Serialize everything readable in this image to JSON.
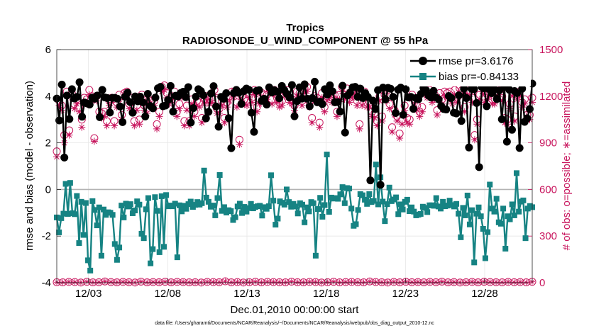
{
  "chart_data": {
    "type": "line",
    "title_line1": "Tropics",
    "title_line2": "RADIOSONDE_U_WIND_COMPONENT @ 55 hPa",
    "xlabel": "Dec.01,2010 00:00:00 start",
    "ylabel_left": "rmse and bias (model - observation)",
    "ylabel_right": "# of obs: o=possible; ∗=assimilated",
    "footnote": "data file: /Users/gharamti/Documents/NCAR/Reanalysis/~/Documents/NCAR/Reanalysis/webpub/obs_diag_output_2010-12.nc",
    "x_range": [
      1,
      31
    ],
    "ylim_left": [
      -4,
      6
    ],
    "ylim_right": [
      0,
      1500
    ],
    "yticks_left": [
      "-4",
      "-2",
      "0",
      "2",
      "4",
      "6"
    ],
    "yticks_right": [
      "0",
      "300",
      "600",
      "900",
      "1200",
      "1500"
    ],
    "x_ticks": [
      {
        "x": 3,
        "label": "12/03"
      },
      {
        "x": 8,
        "label": "12/08"
      },
      {
        "x": 13,
        "label": "12/13"
      },
      {
        "x": 18,
        "label": "12/18"
      },
      {
        "x": 23,
        "label": "12/23"
      },
      {
        "x": 28,
        "label": "12/28"
      }
    ],
    "colors": {
      "rmse": "#000000",
      "bias": "#168383",
      "obs": "#c8155d",
      "zero": "#b3b3b3"
    },
    "legend": {
      "placement": "top-right",
      "rmse": "rmse pr=3.6176",
      "bias": "bias pr=-0.84133"
    },
    "series": [
      {
        "name": "rmse",
        "marker": "circle",
        "values": [
          3.9,
          2.96,
          4.5,
          1.37,
          4.03,
          3.02,
          4.3,
          3.9,
          3.97,
          4.6,
          3.12,
          3.73,
          3.69,
          3.64,
          3.94,
          3.89,
          4.03,
          3.1,
          4.27,
          3.95,
          3.92,
          3.3,
          3.93,
          3.93,
          3.89,
          3.56,
          2.89,
          3.98,
          4.15,
          3.75,
          3.29,
          3.99,
          3.78,
          3.98,
          3.74,
          3.13,
          4.1,
          3.58,
          3.48,
          3.94,
          4.34,
          4.4,
          3.57,
          3.6,
          3.84,
          4.44,
          3.34,
          4.02,
          3.99,
          4.14,
          4.19,
          3.96,
          4.39,
          2.87,
          3.49,
          3.98,
          4.3,
          4.22,
          4.04,
          3.05,
          3.33,
          4.12,
          4.43,
          3.56,
          2.69,
          3.97,
          3.89,
          4.13,
          3.06,
          1.77,
          4.13,
          4.27,
          4.15,
          3.67,
          4.22,
          4.33,
          4.27,
          3.29,
          2.47,
          4.23,
          4.26,
          3.8,
          3.89,
          3.64,
          4.38,
          4.16,
          4.26,
          4.2,
          3.91,
          4.44,
          4.26,
          4.1,
          3.95,
          4.48,
          3.14,
          3.79,
          4.38,
          3.9,
          4.51,
          3.89,
          3.57,
          3.92,
          4.62,
          3.74,
          3.77,
          3.66,
          4.3,
          4.07,
          4.47,
          4.21,
          3.74,
          3.75,
          3.34,
          4.45,
          2.44,
          4.03,
          4.16,
          4.38,
          4.4,
          3.97,
          4.33,
          3.92,
          4.13,
          3.97,
          0.39,
          3.81,
          3.45,
          4.26,
          0.2,
          4.37,
          3.86,
          4.36,
          4.32,
          3.97,
          3.28,
          4.28,
          4.37,
          3.2,
          4.3,
          3.95,
          3.97,
          3.46,
          3.92,
          3.87,
          4.1,
          4.36,
          4.26,
          4.03,
          3.94,
          4.23,
          3.95,
          3.86,
          3.58,
          3.45,
          3.43,
          4.01,
          3.92,
          3.29,
          3.26,
          4.04,
          2.94,
          4.32,
          3.92,
          1.8,
          4.32,
          4.3,
          3.71,
          0.96,
          4.4,
          4.34,
          3.57,
          4.3,
          4.13,
          4.3,
          3.88,
          4.25,
          3.01,
          4.4,
          2.05,
          4.27,
          2.56,
          4.22,
          4.13,
          1.78,
          4.32,
          2.9,
          3.05,
          3.45,
          4.54
        ]
      },
      {
        "name": "bias",
        "marker": "square",
        "values": [
          -1.2,
          -1.84,
          -1.23,
          -1.04,
          0.24,
          -1.05,
          0.28,
          -1.02,
          -1.06,
          -0.28,
          -2.3,
          -0.53,
          -1.95,
          -0.58,
          -3.04,
          -3.48,
          -0.5,
          -0.88,
          -1.54,
          -0.77,
          -2.84,
          -0.86,
          -1.09,
          -0.98,
          -1.0,
          -1.09,
          -2.34,
          -3.02,
          -2.49,
          -0.69,
          -1.2,
          -0.61,
          -0.73,
          -0.63,
          -1.02,
          -0.9,
          -0.51,
          -0.65,
          -1.9,
          -2.09,
          -0.85,
          -0.37,
          -3.17,
          -2.56,
          -0.33,
          -0.92,
          -2.69,
          -0.29,
          -2.46,
          -0.24,
          -0.72,
          -0.69,
          -0.72,
          -0.61,
          -2.91,
          -0.68,
          -0.94,
          -0.7,
          -0.83,
          -0.63,
          -0.52,
          -0.75,
          -0.66,
          -0.54,
          -0.65,
          -0.59,
          0.81,
          -0.35,
          -0.53,
          -0.74,
          -0.69,
          -1.11,
          -0.37,
          0.62,
          -0.92,
          -0.76,
          -0.99,
          -0.89,
          -0.93,
          -1.31,
          -1.19,
          -0.73,
          -0.61,
          -1.01,
          -0.75,
          -0.95,
          -0.8,
          -0.62,
          -0.81,
          -0.75,
          -0.72,
          -0.7,
          -1.12,
          -0.76,
          -0.83,
          -0.72,
          0.61,
          -0.48,
          -1.51,
          -1.25,
          -0.51,
          -0.57,
          -0.65,
          0.0,
          -0.54,
          -0.74,
          -0.62,
          -0.73,
          -1.03,
          -0.59,
          -0.65,
          -1.41,
          -0.77,
          -0.94,
          -0.54,
          -0.59,
          -2.84,
          -0.84,
          -0.36,
          -1.17,
          -0.67,
          1.5,
          -0.96,
          -0.35,
          -0.39,
          -0.37,
          -0.4,
          -0.21,
          0.1,
          -0.59,
          0.06,
          0.04,
          -0.82,
          -1.56,
          -1.49,
          -0.88,
          -0.2,
          -0.25,
          -0.44,
          -0.62,
          -0.2,
          -0.54,
          -0.49,
          1.07,
          -0.64,
          0.52,
          -0.52,
          -1.36,
          -0.63,
          0.08,
          -0.5,
          -0.43,
          -0.34,
          -1.06,
          -0.64,
          -0.86,
          -0.53,
          -0.44,
          -0.93,
          -0.77,
          -0.95,
          -1.11,
          -1.08,
          -1.05,
          -0.74,
          -0.79,
          -0.97,
          -0.68,
          -0.68,
          -0.7,
          -0.37,
          -0.73,
          -0.82,
          -0.53,
          -0.72,
          -0.69,
          -0.48,
          -0.67,
          -0.73,
          -0.62,
          -1.04,
          -2.05,
          -0.79,
          -1.11,
          -0.26,
          -1.5,
          -0.89,
          -3.13,
          -1.04,
          -0.77,
          -1.15,
          -1.69,
          -2.95,
          -1.83,
          0.21,
          -0.82,
          -0.95,
          -0.4,
          -1.41,
          -1.47,
          -0.82,
          -2.54,
          -1.15,
          -1.28,
          -0.64,
          -1.11,
          0.7,
          -0.95,
          -0.52,
          -0.47,
          -2.09,
          -0.82,
          -0.71,
          -0.76
        ]
      },
      {
        "name": "possible",
        "marker": "circle-open",
        "values": [
          845,
          1170,
          1140,
          950,
          1230,
          980,
          1220,
          1150,
          1180,
          1130,
          1050,
          1190,
          1180,
          1240,
          1200,
          930,
          1200,
          1100,
          1090,
          1100,
          1040,
          1170,
          1190,
          1040,
          1160,
          1210,
          1080,
          1220,
          1230,
          1150,
          1190,
          1040,
          1140,
          1050,
          1210,
          1140,
          1120,
          1180,
          1170,
          1170,
          1020,
          1100,
          1260,
          1270,
          1220,
          1180,
          1200,
          1230,
          1100,
          1150,
          1220,
          1040,
          1140,
          1040,
          1180,
          1100,
          1170,
          1160,
          1060,
          1180,
          1200,
          1180,
          1190,
          1240,
          1120,
          1120,
          1170,
          1060,
          1160,
          1200,
          1230,
          1230,
          1160,
          920,
          1200,
          1180,
          1170,
          1220,
          1190,
          1240,
          1130,
          1180,
          1220,
          1210,
          1210,
          1250,
          1180,
          1240,
          1190,
          1160,
          1170,
          1230,
          1240,
          1190,
          1180,
          1140,
          1230,
          1220,
          1170,
          1250,
          1260,
          1160,
          1060,
          1200,
          1190,
          1030,
          1220,
          1130,
          1200,
          1220,
          1190,
          1210,
          1100,
          1210,
          1260,
          1210,
          1250,
          1190,
          1220,
          1240,
          1170,
          1020,
          1170,
          1230,
          1160,
          1160,
          1100,
          1090,
          1040,
          1200,
          1070,
          1210,
          1200,
          1150,
          1000,
          1110,
          1070,
          960,
          1050,
          1140,
          1060,
          1050,
          1210,
          1180,
          1140,
          1100,
          1130,
          1240,
          1220,
          1240,
          1190,
          1210,
          1110,
          1220,
          1180,
          1230,
          1220,
          1230,
          1180,
          1240,
          1190,
          1250,
          1240,
          1130,
          1240,
          1230,
          1190,
          950,
          1050,
          1210,
          1260,
          1190,
          1210,
          1230,
          1180,
          1180,
          1230,
          1240,
          1200,
          1060,
          1050,
          1150,
          1230,
          1070,
          1210,
          1230,
          1160,
          1180,
          1080,
          1080,
          1190
        ]
      },
      {
        "name": "assimilated",
        "marker": "star",
        "values": [
          810,
          1140,
          1110,
          900,
          1200,
          950,
          1190,
          1120,
          1150,
          1100,
          1000,
          1160,
          1150,
          1210,
          1170,
          910,
          1170,
          1070,
          1060,
          1070,
          1010,
          1140,
          1160,
          1010,
          1130,
          1180,
          1050,
          1190,
          1200,
          1120,
          1160,
          1010,
          1110,
          1020,
          1180,
          1110,
          1090,
          1150,
          1140,
          1140,
          990,
          1070,
          1230,
          1240,
          1190,
          1150,
          1170,
          1200,
          1070,
          1120,
          1190,
          1010,
          1110,
          1010,
          1150,
          1070,
          1140,
          1130,
          1030,
          1150,
          1170,
          1150,
          1160,
          1210,
          1090,
          1090,
          1140,
          1030,
          1130,
          1170,
          1200,
          1200,
          1130,
          890,
          1170,
          1150,
          1140,
          1190,
          1160,
          1210,
          1100,
          1150,
          1190,
          1180,
          1180,
          1220,
          1150,
          1210,
          1160,
          1130,
          1140,
          1200,
          1210,
          1160,
          1150,
          1110,
          1200,
          1190,
          1140,
          1220,
          1230,
          1130,
          1030,
          1170,
          1160,
          1000,
          1190,
          1100,
          1170,
          1190,
          1160,
          1180,
          1070,
          1180,
          1230,
          1180,
          1220,
          1160,
          1190,
          1210,
          1140,
          990,
          1140,
          1200,
          1130,
          1130,
          1070,
          1060,
          1010,
          1170,
          1040,
          1180,
          1170,
          1120,
          970,
          1080,
          1040,
          930,
          1020,
          1110,
          1030,
          1020,
          1180,
          1150,
          1110,
          1070,
          1100,
          1210,
          1190,
          1210,
          1160,
          1180,
          1080,
          1190,
          1150,
          1200,
          1190,
          1200,
          1150,
          1210,
          1160,
          1220,
          1210,
          1100,
          1210,
          1200,
          1160,
          920,
          1020,
          1180,
          1230,
          1160,
          1180,
          1200,
          1150,
          1150,
          1200,
          1210,
          1170,
          1030,
          1020,
          1120,
          1200,
          1040,
          1180,
          1200,
          1130,
          1150,
          1050,
          1050,
          1160
        ]
      },
      {
        "name": "possible_low",
        "marker": "circle-open",
        "values": [
          3,
          2,
          5,
          4,
          1,
          6,
          2,
          3,
          8,
          4,
          2,
          5,
          3,
          1,
          7,
          2,
          4,
          3,
          6,
          2,
          5,
          4,
          2,
          3,
          1,
          5,
          4,
          3,
          9,
          2,
          4,
          1,
          3,
          6,
          2,
          5,
          4,
          3,
          2,
          7,
          3,
          2,
          5,
          4,
          1,
          3,
          6,
          2,
          4,
          5,
          3,
          2,
          8,
          4,
          3,
          1,
          5,
          2,
          6,
          3,
          4,
          2,
          5,
          3,
          7,
          2,
          4,
          1,
          3,
          5,
          2,
          6,
          4,
          3,
          2,
          5,
          3,
          4,
          2,
          6
        ]
      }
    ]
  }
}
